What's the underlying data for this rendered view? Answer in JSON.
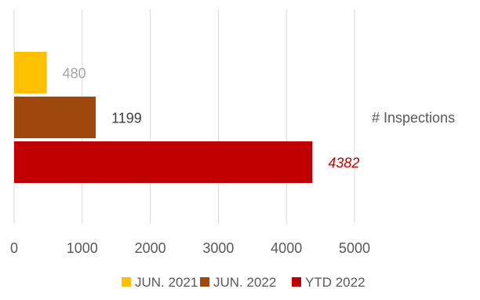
{
  "chart_data": {
    "type": "bar",
    "orientation": "horizontal",
    "category_label": "# Inspections",
    "series": [
      {
        "name": "JUN. 2021",
        "value": 480,
        "label": "480",
        "color": "#FFC000",
        "label_color": "#A6A6A6",
        "label_italic": false
      },
      {
        "name": "JUN. 2022",
        "value": 1199,
        "label": "1199",
        "color": "#9E480E",
        "label_color": "#404040",
        "label_italic": false
      },
      {
        "name": "YTD 2022",
        "value": 4382,
        "label": "4382",
        "color": "#C00000",
        "label_color": "#C00000",
        "label_italic": true
      }
    ],
    "xlim": [
      0,
      5000
    ],
    "xticks": [
      0,
      1000,
      2000,
      3000,
      4000,
      5000
    ],
    "xtick_labels": [
      "0",
      "1000",
      "2000",
      "3000",
      "4000",
      "5000"
    ],
    "grid": true,
    "legend_position": "bottom",
    "title": "",
    "xlabel": "",
    "ylabel": ""
  }
}
